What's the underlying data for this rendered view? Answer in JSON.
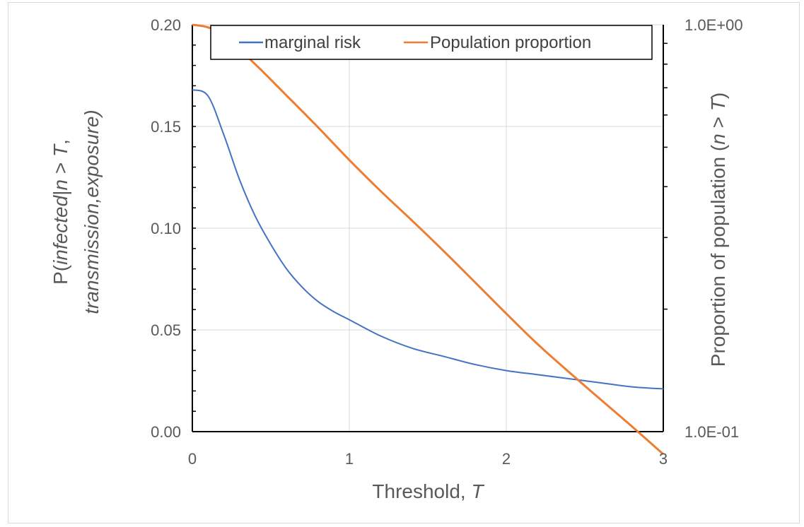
{
  "chart_data": {
    "type": "line",
    "xlabel": {
      "text": "Threshold, ",
      "var": "T"
    },
    "ylabel_left": {
      "line1": {
        "p": "P(",
        "italic": "infected",
        "mid": "|",
        "n": "n",
        "rest": " > ",
        "T": "T",
        "end": ","
      },
      "line2": "transmission,exposure)"
    },
    "ylabel_right": {
      "prefix": "Proportion of population (",
      "n": "n",
      "mid": " > ",
      "T": "T",
      "suffix": ")"
    },
    "xlim": [
      0,
      3
    ],
    "ylim_left": [
      0,
      0.2
    ],
    "ylim_right": [
      0.1,
      1.0
    ],
    "y_right_scale": "log",
    "grid": true,
    "legend_position": "top",
    "x_ticks": [
      "0",
      "1",
      "2",
      "3"
    ],
    "y_left_ticks": [
      "0.00",
      "0.05",
      "0.10",
      "0.15",
      "0.20"
    ],
    "y_right_ticks": [
      "1.0E-01",
      "1.0E+00"
    ],
    "series": [
      {
        "name": "marginal risk",
        "axis": "left",
        "color": "#4472c4",
        "x": [
          0,
          0.1,
          0.2,
          0.3,
          0.4,
          0.5,
          0.6,
          0.7,
          0.8,
          0.9,
          1.0,
          1.2,
          1.4,
          1.6,
          1.8,
          2.0,
          2.2,
          2.4,
          2.6,
          2.8,
          3.0
        ],
        "y": [
          0.168,
          0.165,
          0.146,
          0.124,
          0.106,
          0.092,
          0.08,
          0.071,
          0.064,
          0.059,
          0.055,
          0.047,
          0.041,
          0.037,
          0.033,
          0.03,
          0.028,
          0.026,
          0.024,
          0.022,
          0.021
        ]
      },
      {
        "name": "Population proportion",
        "axis": "right",
        "color": "#ed7d31",
        "x": [
          0,
          0.1,
          0.2,
          0.4,
          0.6,
          0.8,
          1.0,
          1.2,
          1.4,
          1.6,
          1.8,
          2.0,
          2.2,
          2.4,
          2.6,
          2.8,
          3.0
        ],
        "y": [
          1.0,
          0.985,
          0.94,
          0.8,
          0.67,
          0.56,
          0.465,
          0.39,
          0.33,
          0.278,
          0.233,
          0.195,
          0.164,
          0.14,
          0.12,
          0.103,
          0.088
        ]
      }
    ]
  }
}
